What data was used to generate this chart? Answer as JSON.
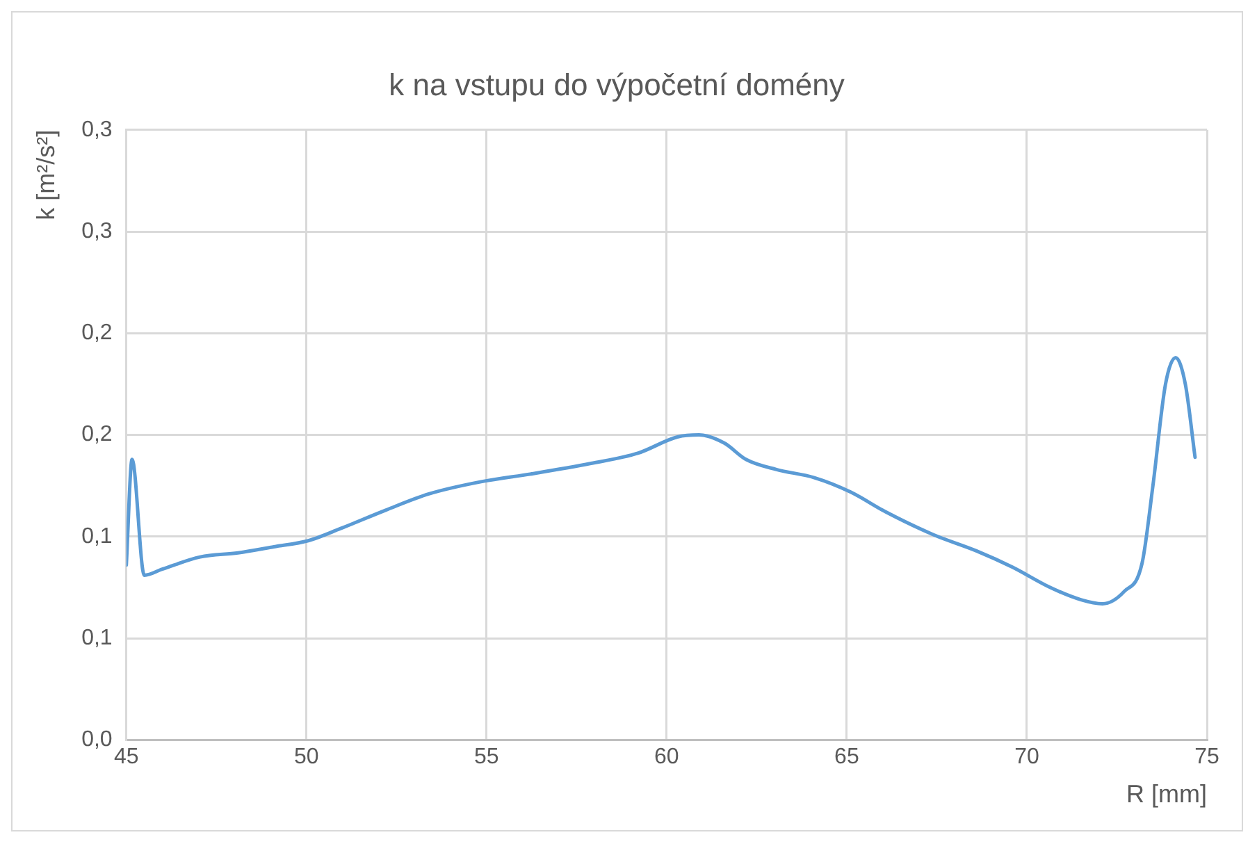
{
  "chart_data": {
    "type": "line",
    "title": "k na vstupu do výpočetní domény",
    "xlabel": "R [mm]",
    "ylabel": "k [m²/s²]",
    "x": [
      45,
      45.16,
      45.5,
      46.0,
      47.05,
      48.1,
      49.1,
      50.05,
      50.95,
      52.2,
      53.4,
      54.85,
      56.3,
      57.9,
      59.2,
      60.3,
      60.9,
      61.6,
      62.2,
      63.05,
      64.1,
      65.1,
      66.1,
      67.4,
      68.6,
      69.6,
      70.65,
      71.5,
      72.1,
      72.7,
      73.2,
      73.5,
      73.85,
      74.13,
      74.4,
      74.67
    ],
    "series": [
      {
        "color": "#5b9bd5",
        "values": [
          0.086,
          0.138,
          0.081,
          0.084,
          0.09,
          0.092,
          0.095,
          0.098,
          0.104,
          0.113,
          0.121,
          0.127,
          0.131,
          0.136,
          0.141,
          0.149,
          0.15,
          0.146,
          0.138,
          0.133,
          0.129,
          0.122,
          0.112,
          0.101,
          0.093,
          0.085,
          0.075,
          0.069,
          0.067,
          0.073,
          0.087,
          0.125,
          0.175,
          0.188,
          0.175,
          0.139
        ]
      }
    ],
    "xlim": [
      45,
      75
    ],
    "xticks": [
      45,
      50,
      55,
      60,
      65,
      70,
      75
    ],
    "ylim": [
      0,
      0.3
    ],
    "yticks": [
      {
        "value": 0,
        "label": "0,0"
      },
      {
        "value": 0.05,
        "label": "0,1"
      },
      {
        "value": 0.1,
        "label": "0,1"
      },
      {
        "value": 0.15,
        "label": "0,2"
      },
      {
        "value": 0.2,
        "label": "0,2"
      },
      {
        "value": 0.25,
        "label": "0,3"
      },
      {
        "value": 0.3,
        "label": "0,3"
      }
    ],
    "grid": true,
    "legend": false,
    "marker": "none",
    "line_style": "solid"
  }
}
